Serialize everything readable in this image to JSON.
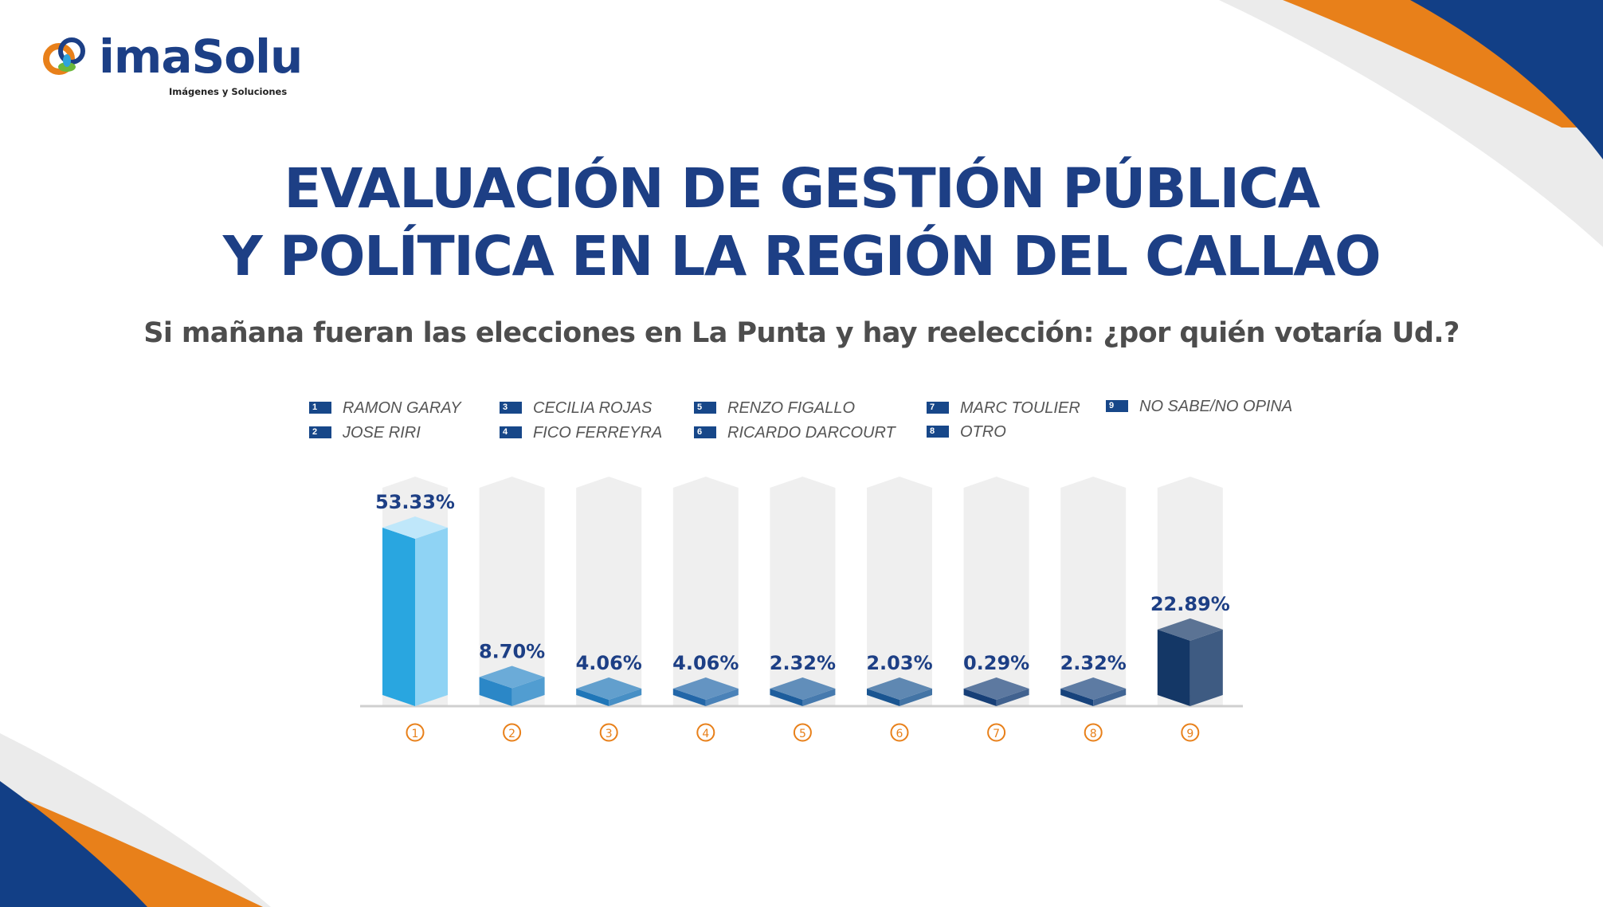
{
  "brand": {
    "name": "imaSolu",
    "tagline": "Imágenes y Soluciones"
  },
  "title_lines": [
    "EVALUACIÓN DE GESTIÓN PÚBLICA",
    "Y POLÍTICA EN LA REGIÓN DEL CALLAO"
  ],
  "subtitle": "Si mañana fueran las elecciones en La Punta y hay reelección: ¿por quién votaría Ud.?",
  "colors": {
    "title": "#1d3f85",
    "accent_orange": "#e8801a",
    "accent_navy": "#123f86"
  },
  "legend": [
    {
      "num": "1",
      "label": "RAMON GARAY"
    },
    {
      "num": "2",
      "label": "JOSE RIRI"
    },
    {
      "num": "3",
      "label": "CECILIA ROJAS"
    },
    {
      "num": "4",
      "label": "FICO FERREYRA"
    },
    {
      "num": "5",
      "label": "RENZO FIGALLO"
    },
    {
      "num": "6",
      "label": "RICARDO DARCOURT"
    },
    {
      "num": "7",
      "label": "MARC TOULIER"
    },
    {
      "num": "8",
      "label": "OTRO"
    },
    {
      "num": "9",
      "label": "NO SABE/NO OPINA"
    }
  ],
  "chart_data": {
    "type": "bar",
    "categories": [
      "1",
      "2",
      "3",
      "4",
      "5",
      "6",
      "7",
      "8",
      "9"
    ],
    "values": [
      53.33,
      8.7,
      4.06,
      4.06,
      2.32,
      2.03,
      0.29,
      2.32,
      22.89
    ],
    "value_labels": [
      "53.33%",
      "8.70%",
      "4.06%",
      "4.06%",
      "2.32%",
      "2.03%",
      "0.29%",
      "2.32%",
      "22.89%"
    ],
    "ylim": [
      0,
      53.33
    ],
    "grid": false,
    "legend_position": "top",
    "colors": [
      "#29a6e0",
      "#2b87c7",
      "#1f76b8",
      "#2266a8",
      "#1d5d9c",
      "#1a5591",
      "#173f77",
      "#17437c",
      "#143766"
    ]
  }
}
